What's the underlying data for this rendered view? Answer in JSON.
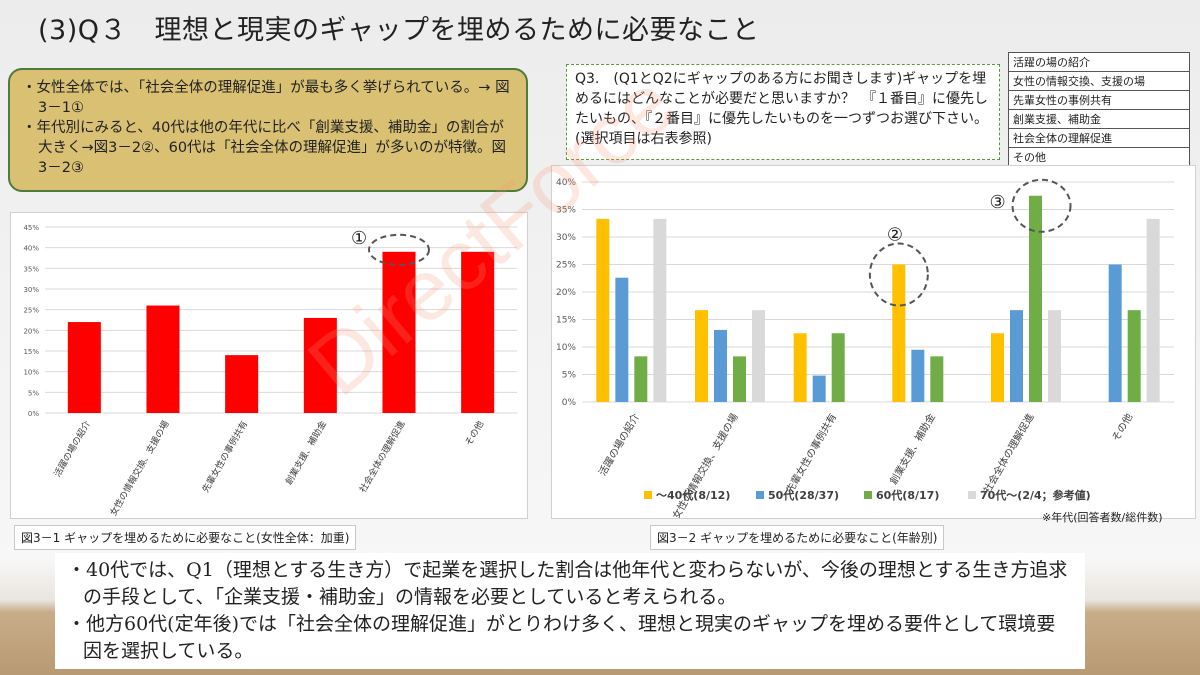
{
  "title": "(3)Q３　理想と現実のギャップを埋めるために必要なこと",
  "summary": [
    "・女性全体では、「社会全体の理解促進」が最も多く挙げられている。→ 図3－1①",
    "・年代別にみると、40代は他の年代に比べ「創業支援、補助金」の割合が大きく→図3－2②、60代は「社会全体の理解促進」が多いのが特徴。図3－2③"
  ],
  "question": "Q3.　(Q1とQ2にギャップのある方にお聞きします)ギャップを埋めるにはどんなことが必要だと思いますか？　『１番目』に優先したいもの、『２番目』に優先したいものを一つずつお選び下さい。(選択項目は右表参照)",
  "choices": [
    "活躍の場の紹介",
    "女性の情報交換、支援の場",
    "先輩女性の事例共有",
    "創業支援、補助金",
    "社会全体の理解促進",
    "その他"
  ],
  "watermark": "DirectForce",
  "colors": {
    "red": "#ff0000",
    "series": [
      "#ffc000",
      "#5b9bd5",
      "#70ad47",
      "#d9d9d9"
    ]
  },
  "chart_data": [
    {
      "type": "bar",
      "title": "",
      "categories": [
        "活躍の場の紹介",
        "女性の情報交換、支援の場",
        "先輩女性の事例共有",
        "創業支援、補助金",
        "社会全体の理解促進",
        "その他"
      ],
      "values": [
        22,
        26,
        14,
        23,
        39,
        39
      ],
      "ylim": [
        0,
        45
      ],
      "yticks": [
        "0%",
        "5%",
        "10%",
        "15%",
        "20%",
        "25%",
        "30%",
        "35%",
        "40%",
        "45%"
      ],
      "grid": true,
      "annotations": [
        "①"
      ],
      "caption": "図3－1 ギャップを埋めるために必要なこと(女性全体：加重)"
    },
    {
      "type": "bar",
      "title": "",
      "categories": [
        "活躍の場の紹介",
        "女性の情報交換、支援の場",
        "先輩女性の事例共有",
        "創業支援、補助金",
        "社会全体の理解促進",
        "その他"
      ],
      "series": [
        {
          "name": "～40代(8/12)",
          "values": [
            33.3,
            16.7,
            12.5,
            25,
            12.5,
            0
          ]
        },
        {
          "name": "50代(28/37)",
          "values": [
            22.6,
            13.1,
            4.8,
            9.5,
            16.7,
            25
          ]
        },
        {
          "name": "60代(8/17)",
          "values": [
            8.3,
            8.3,
            12.5,
            8.3,
            37.5,
            16.7
          ]
        },
        {
          "name": "70代～(2/4；参考値)",
          "values": [
            33.3,
            16.7,
            0,
            0,
            16.7,
            33.3
          ]
        }
      ],
      "ylim": [
        0,
        40
      ],
      "yticks": [
        "0%",
        "5%",
        "10%",
        "15%",
        "20%",
        "25%",
        "30%",
        "35%",
        "40%"
      ],
      "grid": true,
      "legend": "bottom",
      "annotations": [
        "②",
        "③"
      ],
      "caption": "図3－2 ギャップを埋めるために必要なこと(年齢別)",
      "footnote": "※年代(回答者数/総件数)"
    }
  ],
  "conclusions": [
    "・40代では、Q1（理想とする生き方）で起業を選択した割合は他年代と変わらないが、今後の理想とする生き方追求の手段として、「企業支援・補助金」の情報を必要としていると考えられる。",
    "・他方60代(定年後)では「社会全体の理解促進」がとりわけ多く、理想と現実のギャップを埋める要件として環境要因を選択している。"
  ]
}
